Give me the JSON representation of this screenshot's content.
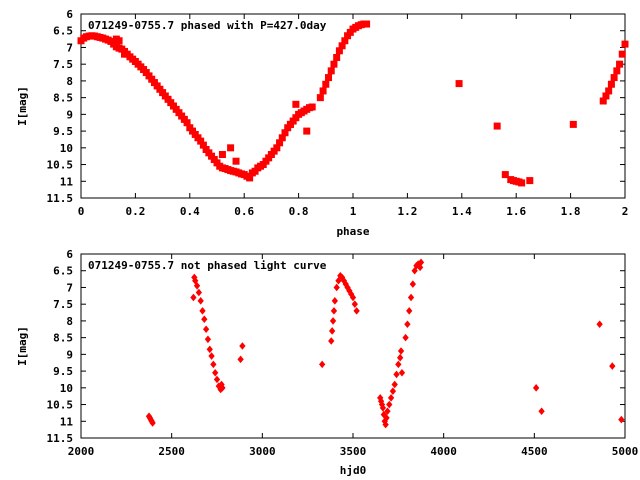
{
  "colors": {
    "points": "#ff0000",
    "axes": "#000000",
    "background": "#ffffff"
  },
  "chart_data": [
    {
      "type": "scatter",
      "title": "071249-0755.7 phased with P=427.0day",
      "xlabel": "phase",
      "ylabel": "I[mag]",
      "xlim": [
        0,
        2
      ],
      "ylim": [
        11.5,
        6
      ],
      "y_inverted": true,
      "grid": false,
      "xticks": [
        "0",
        "0.2",
        "0.4",
        "0.6",
        "0.8",
        "1",
        "1.2",
        "1.4",
        "1.6",
        "1.8",
        "2"
      ],
      "xtick_values": [
        0,
        0.2,
        0.4,
        0.6,
        0.8,
        1.0,
        1.2,
        1.4,
        1.6,
        1.8,
        2.0
      ],
      "yticks": [
        "6",
        "6.5",
        "7",
        "7.5",
        "8",
        "8.5",
        "9",
        "9.5",
        "10",
        "10.5",
        "11",
        "11.5"
      ],
      "ytick_values": [
        6,
        6.5,
        7,
        7.5,
        8,
        8.5,
        9,
        9.5,
        10,
        10.5,
        11,
        11.5
      ],
      "series": [
        {
          "marker": "star",
          "x": [
            0.0,
            0.01,
            0.02,
            0.03,
            0.04,
            0.05,
            0.06,
            0.07,
            0.08,
            0.09,
            0.1,
            0.11,
            0.12,
            0.13,
            0.14,
            0.15,
            0.16,
            0.17,
            0.18,
            0.19,
            0.2,
            0.21,
            0.22,
            0.23,
            0.24,
            0.25,
            0.26,
            0.27,
            0.28,
            0.29,
            0.3,
            0.31,
            0.32,
            0.33,
            0.34,
            0.35,
            0.36,
            0.37,
            0.38,
            0.39,
            0.4,
            0.41,
            0.42,
            0.43,
            0.44,
            0.45,
            0.46,
            0.47,
            0.48,
            0.49,
            0.5,
            0.51,
            0.52,
            0.53,
            0.54,
            0.55,
            0.56,
            0.57,
            0.58,
            0.59,
            0.6,
            0.61,
            0.62,
            0.63,
            0.13,
            0.14,
            0.16,
            0.52,
            0.55,
            0.57,
            0.64,
            0.65,
            0.66,
            0.67,
            0.68,
            0.69,
            0.7,
            0.71,
            0.72,
            0.73,
            0.74,
            0.75,
            0.76,
            0.77,
            0.78,
            0.79,
            0.8,
            0.81,
            0.82,
            0.83,
            0.84,
            0.85,
            0.77,
            0.79,
            0.83,
            0.88,
            0.89,
            0.9,
            0.91,
            0.92,
            0.93,
            0.94,
            0.95,
            0.96,
            0.97,
            0.98,
            0.99,
            1.0,
            1.01,
            1.02,
            1.03,
            1.04,
            1.05,
            1.39,
            1.53,
            1.56,
            1.58,
            1.59,
            1.6,
            1.61,
            1.62,
            1.65,
            1.81,
            1.92,
            1.93,
            1.94,
            1.95,
            1.96,
            1.97,
            1.98,
            1.99,
            2.0
          ],
          "y": [
            6.8,
            6.72,
            6.68,
            6.66,
            6.65,
            6.66,
            6.68,
            6.7,
            6.72,
            6.75,
            6.78,
            6.82,
            6.9,
            6.98,
            7.02,
            7.05,
            7.12,
            7.2,
            7.28,
            7.35,
            7.42,
            7.5,
            7.58,
            7.66,
            7.75,
            7.85,
            7.95,
            8.05,
            8.15,
            8.25,
            8.35,
            8.45,
            8.55,
            8.65,
            8.75,
            8.85,
            8.95,
            9.05,
            9.15,
            9.25,
            9.4,
            9.5,
            9.6,
            9.7,
            9.8,
            9.92,
            10.05,
            10.15,
            10.25,
            10.35,
            10.45,
            10.55,
            10.6,
            10.62,
            10.65,
            10.68,
            10.7,
            10.72,
            10.75,
            10.78,
            10.8,
            10.85,
            10.9,
            10.75,
            6.75,
            6.8,
            7.2,
            10.2,
            10.0,
            10.4,
            10.7,
            10.6,
            10.55,
            10.5,
            10.4,
            10.3,
            10.2,
            10.1,
            10.0,
            9.85,
            9.7,
            9.55,
            9.4,
            9.3,
            9.2,
            9.1,
            9.0,
            8.95,
            8.9,
            8.85,
            8.8,
            8.78,
            9.3,
            8.7,
            9.5,
            8.5,
            8.3,
            8.1,
            7.9,
            7.7,
            7.5,
            7.3,
            7.1,
            6.95,
            6.8,
            6.65,
            6.55,
            6.45,
            6.4,
            6.35,
            6.32,
            6.3,
            6.3,
            8.08,
            9.35,
            10.8,
            10.95,
            10.98,
            11.0,
            11.02,
            11.05,
            10.98,
            9.3,
            8.6,
            8.45,
            8.3,
            8.1,
            7.9,
            7.7,
            7.5,
            7.2,
            6.9
          ]
        }
      ]
    },
    {
      "type": "scatter",
      "title": "071249-0755.7 not phased light curve",
      "xlabel": "hjd0",
      "ylabel": "I[mag]",
      "xlim": [
        2000,
        5000
      ],
      "ylim": [
        11.5,
        6
      ],
      "y_inverted": true,
      "grid": false,
      "xticks": [
        "2000",
        "2500",
        "3000",
        "3500",
        "4000",
        "4500",
        "5000"
      ],
      "xtick_values": [
        2000,
        2500,
        3000,
        3500,
        4000,
        4500,
        5000
      ],
      "yticks": [
        "6",
        "6.5",
        "7",
        "7.5",
        "8",
        "8.5",
        "9",
        "9.5",
        "10",
        "10.5",
        "11",
        "11.5"
      ],
      "ytick_values": [
        6,
        6.5,
        7,
        7.5,
        8,
        8.5,
        9,
        9.5,
        10,
        10.5,
        11,
        11.5
      ],
      "series": [
        {
          "marker": "diamond",
          "x": [
            2375,
            2380,
            2385,
            2390,
            2395,
            2620,
            2625,
            2630,
            2640,
            2650,
            2660,
            2670,
            2680,
            2690,
            2700,
            2710,
            2720,
            2730,
            2740,
            2750,
            2760,
            2770,
            2775,
            2780,
            2880,
            2890,
            3330,
            3380,
            3385,
            3390,
            3395,
            3400,
            3410,
            3420,
            3430,
            3440,
            3450,
            3460,
            3470,
            3480,
            3490,
            3500,
            3510,
            3520,
            3650,
            3655,
            3660,
            3665,
            3670,
            3675,
            3680,
            3685,
            3690,
            3700,
            3710,
            3720,
            3730,
            3740,
            3750,
            3760,
            3765,
            3770,
            3790,
            3800,
            3810,
            3820,
            3830,
            3840,
            3850,
            3860,
            3870,
            3875,
            4510,
            4540,
            4860,
            4930,
            4980
          ],
          "y": [
            10.85,
            10.9,
            10.95,
            11.0,
            11.05,
            7.3,
            6.7,
            6.8,
            6.95,
            7.15,
            7.4,
            7.7,
            7.95,
            8.25,
            8.55,
            8.85,
            9.05,
            9.3,
            9.55,
            9.75,
            9.95,
            10.05,
            9.9,
            10.0,
            9.15,
            8.75,
            9.3,
            8.6,
            8.3,
            8.0,
            7.7,
            7.4,
            7.0,
            6.8,
            6.65,
            6.7,
            6.8,
            6.9,
            7.0,
            7.1,
            7.2,
            7.3,
            7.5,
            7.7,
            10.3,
            10.4,
            10.5,
            10.6,
            10.8,
            11.0,
            11.1,
            10.9,
            10.7,
            10.5,
            10.3,
            10.1,
            9.9,
            9.6,
            9.3,
            9.1,
            8.9,
            9.55,
            8.5,
            8.1,
            7.7,
            7.3,
            6.9,
            6.5,
            6.35,
            6.3,
            6.4,
            6.25,
            10.0,
            10.7,
            8.1,
            9.35,
            10.95
          ]
        }
      ]
    }
  ]
}
